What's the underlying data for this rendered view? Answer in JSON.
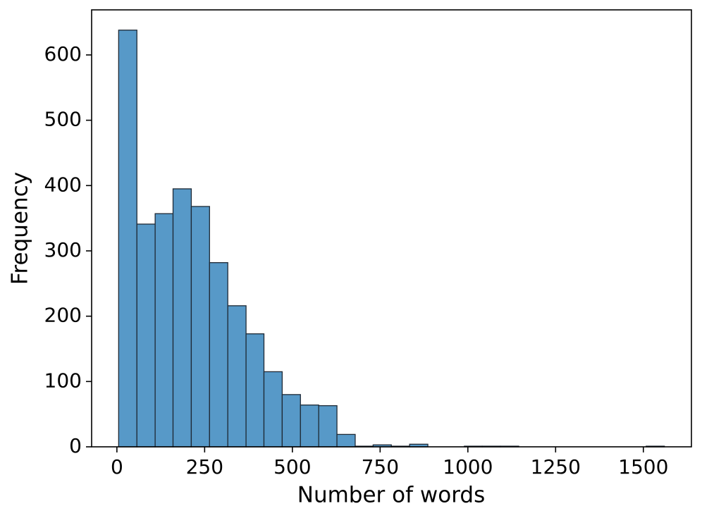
{
  "chart_data": {
    "type": "histogram",
    "xlabel": "Number of words",
    "ylabel": "Frequency",
    "bins": [
      5,
      57,
      109,
      160,
      212,
      264,
      316,
      368,
      419,
      471,
      523,
      575,
      627,
      679,
      730,
      782,
      834,
      886,
      938,
      990,
      1041,
      1093,
      1145,
      1197,
      1249,
      1301,
      1352,
      1404,
      1456,
      1508,
      1560
    ],
    "values": [
      638,
      341,
      357,
      395,
      368,
      282,
      216,
      173,
      115,
      80,
      64,
      63,
      19,
      1,
      3,
      1,
      4,
      0,
      0,
      1,
      1,
      1,
      0,
      0,
      0,
      0,
      0,
      0,
      0,
      1
    ],
    "color": "#5799c8",
    "edgecolor": "#1f2a36",
    "xlim": [
      -72,
      1637
    ],
    "xticks": [
      0,
      250,
      500,
      750,
      1000,
      1250,
      1500
    ],
    "ylim": [
      0,
      669
    ],
    "yticks": [
      0,
      100,
      200,
      300,
      400,
      500,
      600
    ]
  }
}
